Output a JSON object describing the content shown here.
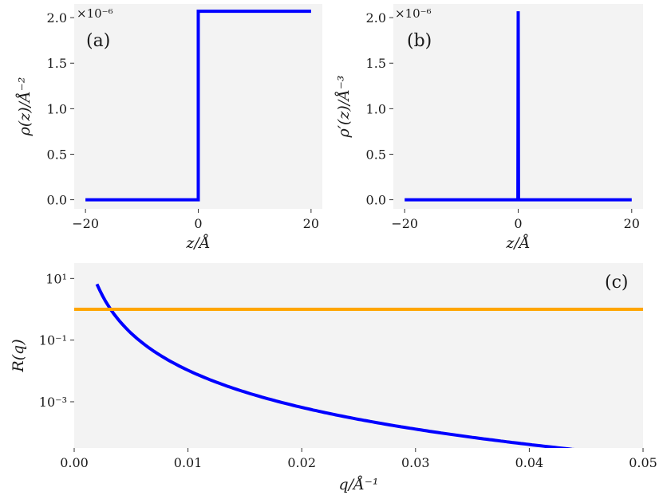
{
  "chart_data": [
    {
      "type": "line",
      "panel_label": "(a)",
      "xlabel": "z/Å",
      "ylabel": "ρ(z)/Å⁻²",
      "y_multiplier": "×10⁻⁶",
      "xlim": [
        -22,
        22
      ],
      "ylim": [
        -0.1,
        2.15
      ],
      "xticks": [
        -20,
        0,
        20
      ],
      "xtick_labels": [
        "−20",
        "0",
        "20"
      ],
      "yticks": [
        0.0,
        0.5,
        1.0,
        1.5,
        2.0
      ],
      "ytick_labels": [
        "0.0",
        "0.5",
        "1.0",
        "1.5",
        "2.0"
      ],
      "series": [
        {
          "color": "#0000ff",
          "x": [
            -20,
            0,
            0,
            20
          ],
          "y": [
            0.0,
            0.0,
            2.07,
            2.07
          ]
        }
      ]
    },
    {
      "type": "line",
      "panel_label": "(b)",
      "xlabel": "z/Å",
      "ylabel": "ρ′(z)/Å⁻³",
      "y_multiplier": "×10⁻⁶",
      "xlim": [
        -22,
        22
      ],
      "ylim": [
        -0.1,
        2.15
      ],
      "xticks": [
        -20,
        0,
        20
      ],
      "xtick_labels": [
        "−20",
        "0",
        "20"
      ],
      "yticks": [
        0.0,
        0.5,
        1.0,
        1.5,
        2.0
      ],
      "ytick_labels": [
        "0.0",
        "0.5",
        "1.0",
        "1.5",
        "2.0"
      ],
      "series": [
        {
          "color": "#0000ff",
          "x": [
            -20,
            -0.05,
            0,
            0.05,
            20
          ],
          "y": [
            0.0,
            0.0,
            2.07,
            0.0,
            0.0
          ]
        }
      ]
    },
    {
      "type": "line",
      "panel_label": "(c)",
      "xlabel": "q/Å⁻¹",
      "ylabel": "R(q)",
      "y_scale": "log",
      "xlim": [
        0.0,
        0.05
      ],
      "ylim_log10": [
        -4.5,
        1.5
      ],
      "xticks": [
        0.0,
        0.01,
        0.02,
        0.03,
        0.04,
        0.05
      ],
      "xtick_labels": [
        "0.00",
        "0.01",
        "0.02",
        "0.03",
        "0.04",
        "0.05"
      ],
      "yticks_log10": [
        1,
        -1,
        -3
      ],
      "ytick_labels": [
        "10¹",
        "10⁻¹",
        "10⁻³"
      ],
      "series": [
        {
          "color": "#0000ff",
          "function": "R(q) ≈ 1.05×10⁻¹⁰ / q⁴",
          "q_start": 0.002,
          "q_end": 0.05
        },
        {
          "color": "#ffa500",
          "constant": 1.0
        }
      ]
    }
  ]
}
